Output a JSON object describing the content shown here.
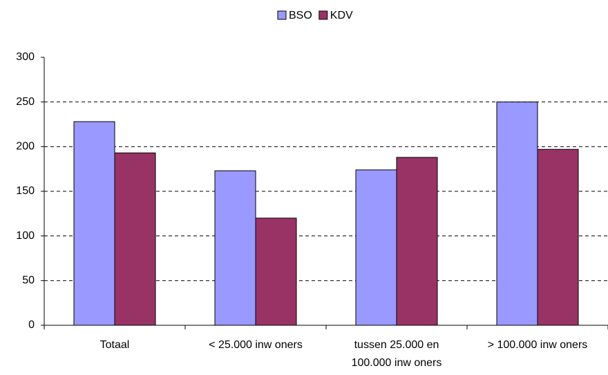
{
  "chart_data": {
    "type": "bar",
    "categories": [
      "Totaal",
      "< 25.000 inw oners",
      "tussen 25.000 en\n100.000 inw oners",
      "> 100.000 inw oners"
    ],
    "series": [
      {
        "name": "BSO",
        "color": "#9999ff",
        "values": [
          228,
          173,
          174,
          250
        ]
      },
      {
        "name": "KDV",
        "color": "#993366",
        "values": [
          193,
          120,
          188,
          197
        ]
      }
    ],
    "ylim": [
      0,
      300
    ],
    "yticks": [
      0,
      50,
      100,
      150,
      200,
      250,
      300
    ],
    "grid": true,
    "legend": "top"
  }
}
